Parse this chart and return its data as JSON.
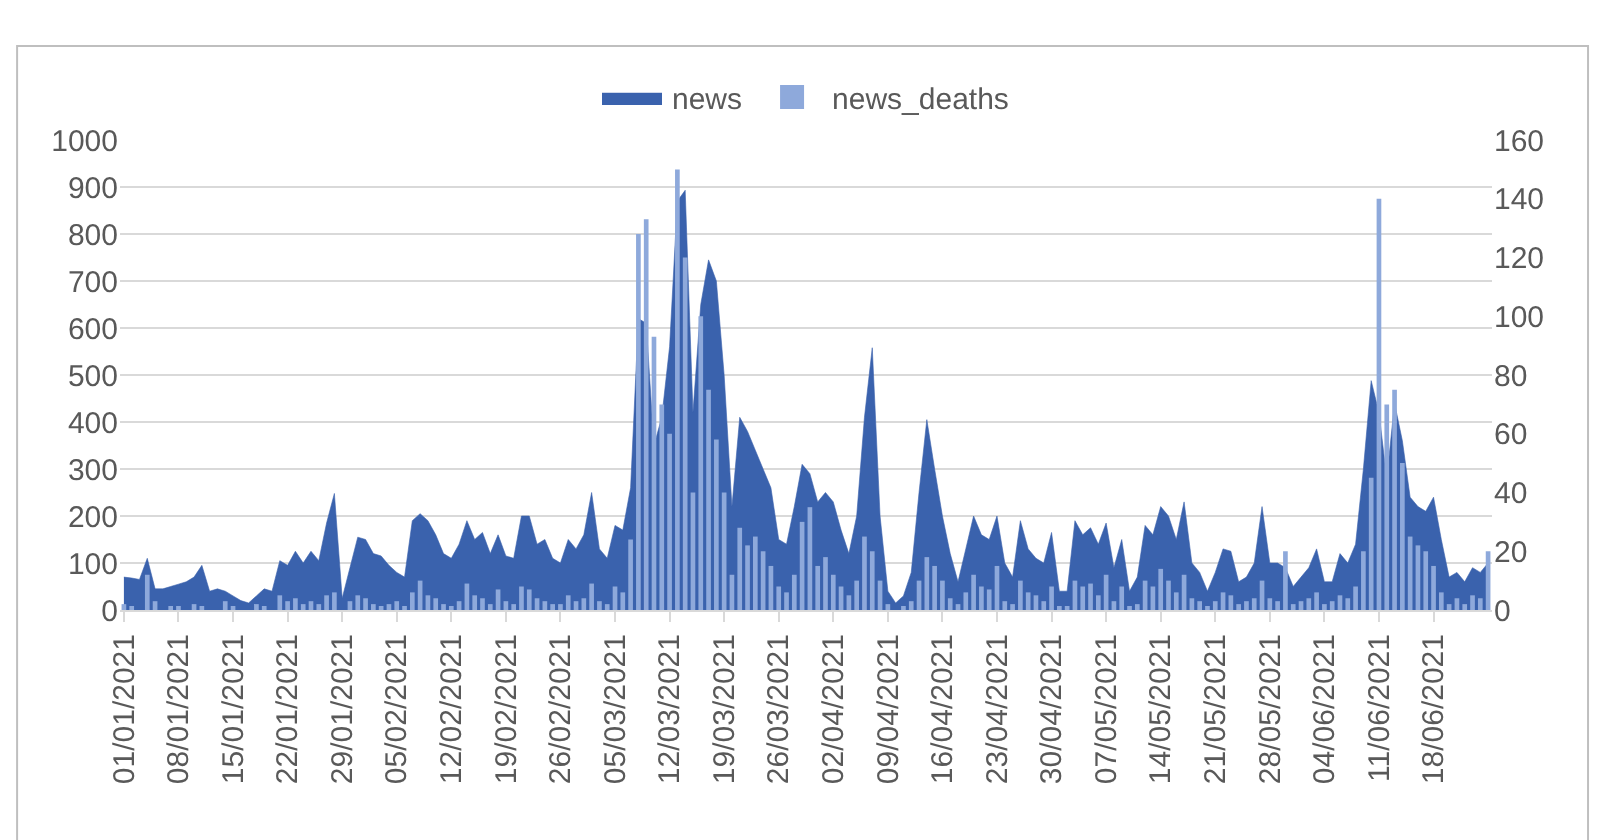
{
  "chart_data": {
    "type": "area",
    "x": [
      "2021-01-01",
      "2021-01-02",
      "2021-01-03",
      "2021-01-04",
      "2021-01-05",
      "2021-01-06",
      "2021-01-07",
      "2021-01-08",
      "2021-01-09",
      "2021-01-10",
      "2021-01-11",
      "2021-01-12",
      "2021-01-13",
      "2021-01-14",
      "2021-01-15",
      "2021-01-16",
      "2021-01-17",
      "2021-01-18",
      "2021-01-19",
      "2021-01-20",
      "2021-01-21",
      "2021-01-22",
      "2021-01-23",
      "2021-01-24",
      "2021-01-25",
      "2021-01-26",
      "2021-01-27",
      "2021-01-28",
      "2021-01-29",
      "2021-01-30",
      "2021-01-31",
      "2021-02-01",
      "2021-02-02",
      "2021-02-03",
      "2021-02-04",
      "2021-02-05",
      "2021-02-06",
      "2021-02-07",
      "2021-02-08",
      "2021-02-09",
      "2021-02-10",
      "2021-02-11",
      "2021-02-12",
      "2021-02-13",
      "2021-02-14",
      "2021-02-15",
      "2021-02-16",
      "2021-02-17",
      "2021-02-18",
      "2021-02-19",
      "2021-02-20",
      "2021-02-21",
      "2021-02-22",
      "2021-02-23",
      "2021-02-24",
      "2021-02-25",
      "2021-02-26",
      "2021-02-27",
      "2021-02-28",
      "2021-03-01",
      "2021-03-02",
      "2021-03-03",
      "2021-03-04",
      "2021-03-05",
      "2021-03-06",
      "2021-03-07",
      "2021-03-08",
      "2021-03-09",
      "2021-03-10",
      "2021-03-11",
      "2021-03-12",
      "2021-03-13",
      "2021-03-14",
      "2021-03-15",
      "2021-03-16",
      "2021-03-17",
      "2021-03-18",
      "2021-03-19",
      "2021-03-20",
      "2021-03-21",
      "2021-03-22",
      "2021-03-23",
      "2021-03-24",
      "2021-03-25",
      "2021-03-26",
      "2021-03-27",
      "2021-03-28",
      "2021-03-29",
      "2021-03-30",
      "2021-03-31",
      "2021-04-01",
      "2021-04-02",
      "2021-04-03",
      "2021-04-04",
      "2021-04-05",
      "2021-04-06",
      "2021-04-07",
      "2021-04-08",
      "2021-04-09",
      "2021-04-10",
      "2021-04-11",
      "2021-04-12",
      "2021-04-13",
      "2021-04-14",
      "2021-04-15",
      "2021-04-16",
      "2021-04-17",
      "2021-04-18",
      "2021-04-19",
      "2021-04-20",
      "2021-04-21",
      "2021-04-22",
      "2021-04-23",
      "2021-04-24",
      "2021-04-25",
      "2021-04-26",
      "2021-04-27",
      "2021-04-28",
      "2021-04-29",
      "2021-04-30",
      "2021-05-01",
      "2021-05-02",
      "2021-05-03",
      "2021-05-04",
      "2021-05-05",
      "2021-05-06",
      "2021-05-07",
      "2021-05-08",
      "2021-05-09",
      "2021-05-10",
      "2021-05-11",
      "2021-05-12",
      "2021-05-13",
      "2021-05-14",
      "2021-05-15",
      "2021-05-16",
      "2021-05-17",
      "2021-05-18",
      "2021-05-19",
      "2021-05-20",
      "2021-05-21",
      "2021-05-22",
      "2021-05-23",
      "2021-05-24",
      "2021-05-25",
      "2021-05-26",
      "2021-05-27",
      "2021-05-28",
      "2021-05-29",
      "2021-05-30",
      "2021-05-31",
      "2021-06-01",
      "2021-06-02",
      "2021-06-03",
      "2021-06-04",
      "2021-06-05",
      "2021-06-06",
      "2021-06-07",
      "2021-06-08",
      "2021-06-09",
      "2021-06-10",
      "2021-06-11",
      "2021-06-12",
      "2021-06-13",
      "2021-06-14",
      "2021-06-15",
      "2021-06-16",
      "2021-06-17",
      "2021-06-18",
      "2021-06-19",
      "2021-06-20",
      "2021-06-21",
      "2021-06-22",
      "2021-06-23",
      "2021-06-24",
      "2021-06-25"
    ],
    "series": [
      {
        "name": "news",
        "color": "#3a62ad",
        "values": [
          70,
          68,
          65,
          110,
          45,
          45,
          50,
          55,
          60,
          70,
          95,
          40,
          45,
          40,
          30,
          20,
          15,
          30,
          45,
          40,
          105,
          95,
          125,
          100,
          125,
          105,
          185,
          248,
          25,
          90,
          155,
          150,
          120,
          115,
          95,
          80,
          70,
          190,
          205,
          190,
          160,
          120,
          110,
          140,
          190,
          150,
          165,
          120,
          160,
          115,
          110,
          200,
          200,
          140,
          150,
          110,
          100,
          150,
          130,
          160,
          250,
          130,
          110,
          180,
          170,
          260,
          620,
          610,
          350,
          410,
          560,
          870,
          893,
          420,
          650,
          745,
          700,
          500,
          220,
          410,
          380,
          340,
          300,
          260,
          150,
          140,
          220,
          310,
          290,
          230,
          250,
          230,
          170,
          120,
          200,
          410,
          558,
          200,
          40,
          15,
          30,
          80,
          250,
          405,
          300,
          200,
          120,
          60,
          130,
          200,
          160,
          150,
          200,
          100,
          70,
          190,
          130,
          110,
          100,
          165,
          40,
          40,
          190,
          160,
          175,
          140,
          185,
          90,
          150,
          40,
          70,
          180,
          160,
          220,
          200,
          150,
          230,
          100,
          80,
          40,
          80,
          130,
          125,
          60,
          70,
          100,
          220,
          100,
          100,
          90,
          50,
          70,
          90,
          130,
          60,
          60,
          120,
          100,
          140,
          300,
          488,
          420,
          280,
          440,
          360,
          240,
          220,
          210,
          240,
          150,
          70,
          80,
          60,
          90,
          80,
          100
        ]
      },
      {
        "name": "news_deaths",
        "type": "bar",
        "axis": "y2",
        "color": "#8ea9db",
        "values": [
          2,
          1,
          0,
          12,
          3,
          0,
          1,
          1,
          0,
          2,
          1,
          0,
          0,
          3,
          1,
          0,
          0,
          2,
          1,
          0,
          5,
          3,
          4,
          2,
          3,
          2,
          5,
          6,
          0,
          3,
          5,
          4,
          2,
          1,
          2,
          3,
          1,
          6,
          10,
          5,
          4,
          2,
          1,
          3,
          9,
          5,
          4,
          2,
          7,
          3,
          2,
          8,
          7,
          4,
          3,
          2,
          2,
          5,
          3,
          4,
          9,
          3,
          2,
          8,
          6,
          24,
          128,
          133,
          93,
          70,
          60,
          150,
          120,
          40,
          100,
          75,
          58,
          40,
          12,
          28,
          22,
          25,
          20,
          15,
          8,
          6,
          12,
          30,
          35,
          15,
          18,
          12,
          8,
          5,
          10,
          25,
          20,
          10,
          2,
          0,
          1,
          3,
          10,
          18,
          15,
          10,
          4,
          2,
          6,
          12,
          8,
          7,
          15,
          3,
          2,
          10,
          6,
          5,
          3,
          8,
          1,
          1,
          10,
          8,
          9,
          5,
          12,
          3,
          8,
          1,
          2,
          10,
          8,
          14,
          10,
          6,
          12,
          4,
          3,
          1,
          3,
          6,
          5,
          2,
          3,
          4,
          10,
          4,
          3,
          20,
          2,
          3,
          4,
          6,
          2,
          3,
          5,
          4,
          8,
          20,
          45,
          140,
          70,
          75,
          50,
          25,
          22,
          20,
          15,
          6,
          2,
          4,
          2,
          5,
          4,
          20
        ]
      }
    ],
    "xlim": [
      "2020-12-31T12:00",
      "2021-06-25T12:00"
    ],
    "xticks": [
      {
        "value": "2021-01-01",
        "label": "01/01/2021"
      },
      {
        "value": "2021-01-08",
        "label": "08/01/2021"
      },
      {
        "value": "2021-01-15",
        "label": "15/01/2021"
      },
      {
        "value": "2021-01-22",
        "label": "22/01/2021"
      },
      {
        "value": "2021-01-29",
        "label": "29/01/2021"
      },
      {
        "value": "2021-02-05",
        "label": "05/02/2021"
      },
      {
        "value": "2021-02-12",
        "label": "12/02/2021"
      },
      {
        "value": "2021-02-19",
        "label": "19/02/2021"
      },
      {
        "value": "2021-02-26",
        "label": "26/02/2021"
      },
      {
        "value": "2021-03-05",
        "label": "05/03/2021"
      },
      {
        "value": "2021-03-12",
        "label": "12/03/2021"
      },
      {
        "value": "2021-03-19",
        "label": "19/03/2021"
      },
      {
        "value": "2021-03-26",
        "label": "26/03/2021"
      },
      {
        "value": "2021-04-02",
        "label": "02/04/2021"
      },
      {
        "value": "2021-04-09",
        "label": "09/04/2021"
      },
      {
        "value": "2021-04-16",
        "label": "16/04/2021"
      },
      {
        "value": "2021-04-23",
        "label": "23/04/2021"
      },
      {
        "value": "2021-04-30",
        "label": "30/04/2021"
      },
      {
        "value": "2021-05-07",
        "label": "07/05/2021"
      },
      {
        "value": "2021-05-14",
        "label": "14/05/2021"
      },
      {
        "value": "2021-05-21",
        "label": "21/05/2021"
      },
      {
        "value": "2021-05-28",
        "label": "28/05/2021"
      },
      {
        "value": "2021-06-04",
        "label": "04/06/2021"
      },
      {
        "value": "2021-06-11",
        "label": "11/06/2021"
      },
      {
        "value": "2021-06-18",
        "label": "18/06/2021"
      }
    ],
    "ylim": [
      0,
      1000
    ],
    "yticks": [
      0,
      100,
      200,
      300,
      400,
      500,
      600,
      700,
      800,
      900,
      1000
    ],
    "y2lim": [
      0,
      160
    ],
    "y2ticks": [
      0,
      20,
      40,
      60,
      80,
      100,
      120,
      140,
      160
    ],
    "grid": "y",
    "legend": "top"
  }
}
